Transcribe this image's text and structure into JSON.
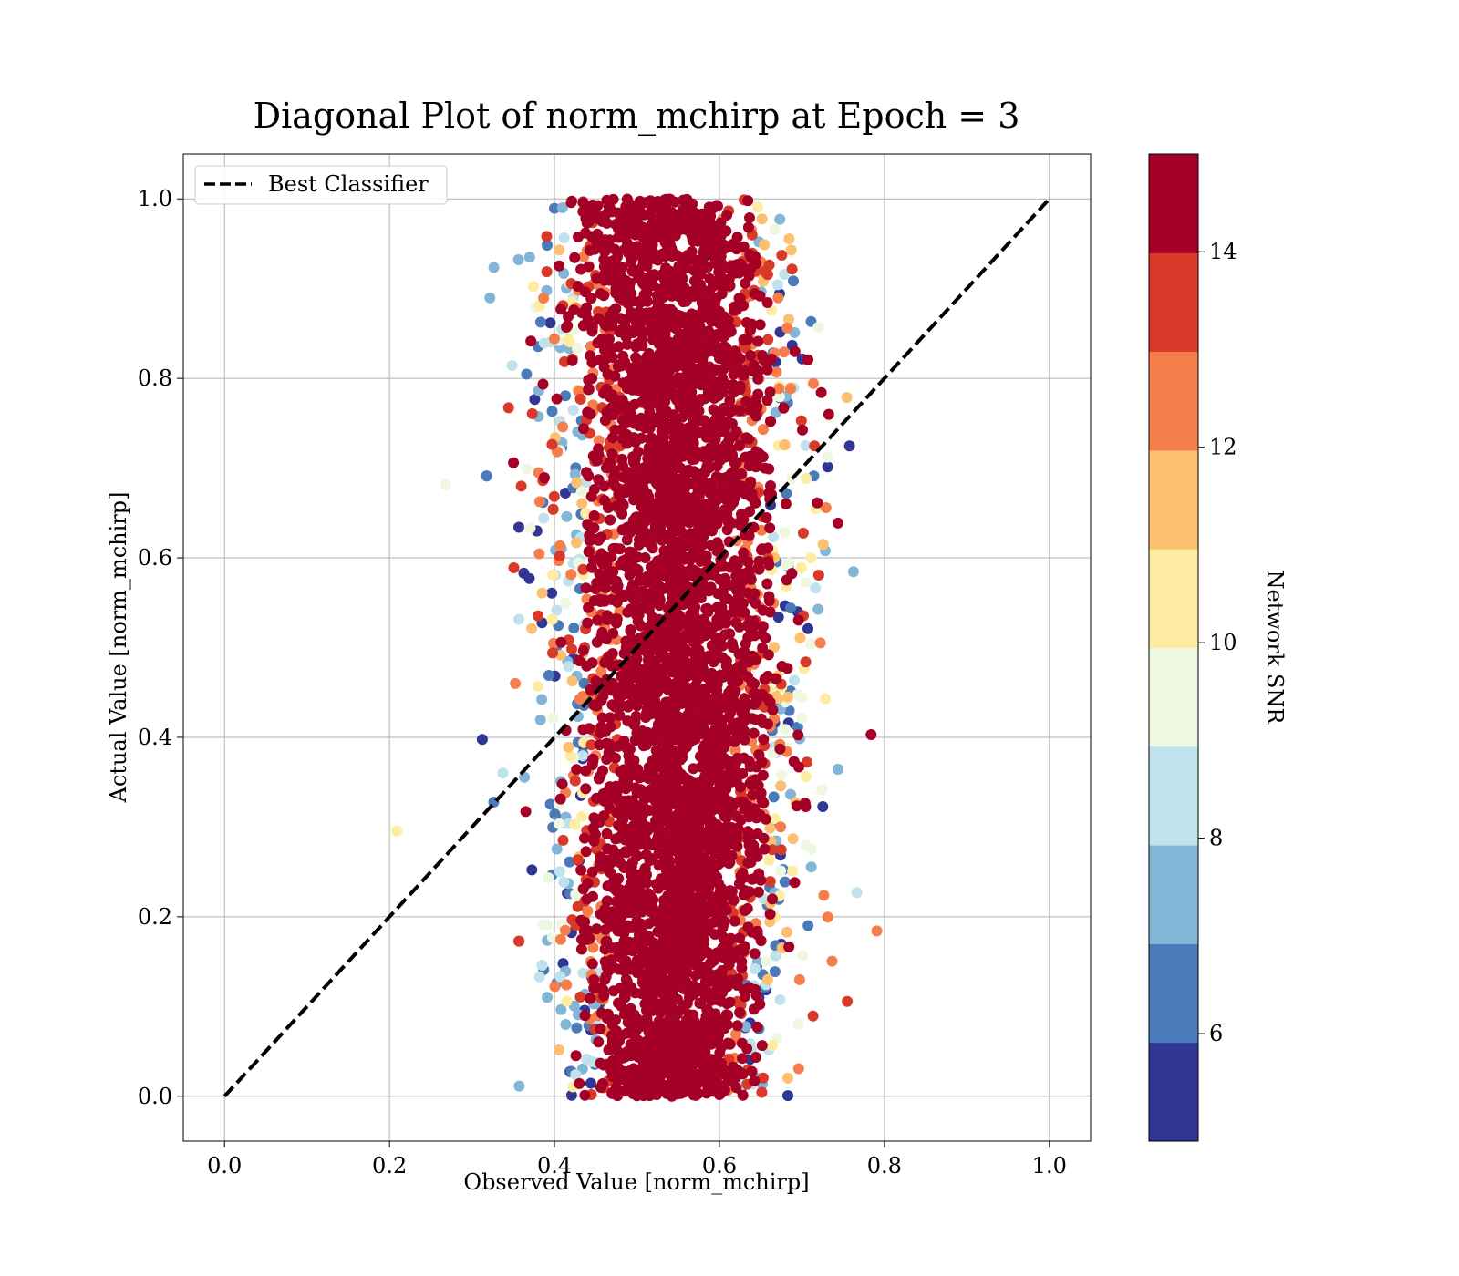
{
  "chart_data": {
    "type": "scatter",
    "title": "Diagonal Plot of norm_mchirp at Epoch = 3",
    "xlabel": "Observed Value [norm_mchirp]",
    "ylabel": "Actual Value [norm_mchirp]",
    "xlim": [
      -0.05,
      1.05
    ],
    "ylim": [
      -0.05,
      1.05
    ],
    "xticks": [
      "0.0",
      "0.2",
      "0.4",
      "0.6",
      "0.8",
      "1.0"
    ],
    "yticks": [
      "0.0",
      "0.2",
      "0.4",
      "0.6",
      "0.8",
      "1.0"
    ],
    "grid": true,
    "legend": {
      "position": "top-left",
      "entries": [
        {
          "label": "Best Classifier",
          "style": "dashed",
          "color": "#000000"
        }
      ]
    },
    "reference_line": {
      "label": "Best Classifier",
      "x": [
        0.0,
        1.0
      ],
      "y": [
        0.0,
        1.0
      ]
    },
    "colorbar": {
      "label": "Network SNR",
      "range": [
        4.9,
        15.0
      ],
      "ticks": [
        "6",
        "8",
        "10",
        "12",
        "14"
      ],
      "tick_values": [
        6,
        8,
        10,
        12,
        14
      ],
      "colors": [
        "#313695",
        "#4a7ab8",
        "#82b5d6",
        "#c0e2ed",
        "#eef7e0",
        "#fdeca2",
        "#fdbf70",
        "#f57e4c",
        "#d93929",
        "#a50026"
      ]
    },
    "point_cloud": {
      "x_center_at_y": [
        {
          "y": 0.05,
          "x": 0.54
        },
        {
          "y": 0.2,
          "x": 0.54
        },
        {
          "y": 0.4,
          "x": 0.55
        },
        {
          "y": 0.6,
          "x": 0.55
        },
        {
          "y": 0.8,
          "x": 0.55
        },
        {
          "y": 0.95,
          "x": 0.53
        }
      ],
      "x_spread": 0.07,
      "y_range": [
        0.0,
        1.0
      ],
      "dominant_snr": 15,
      "n_points": 5200
    }
  }
}
